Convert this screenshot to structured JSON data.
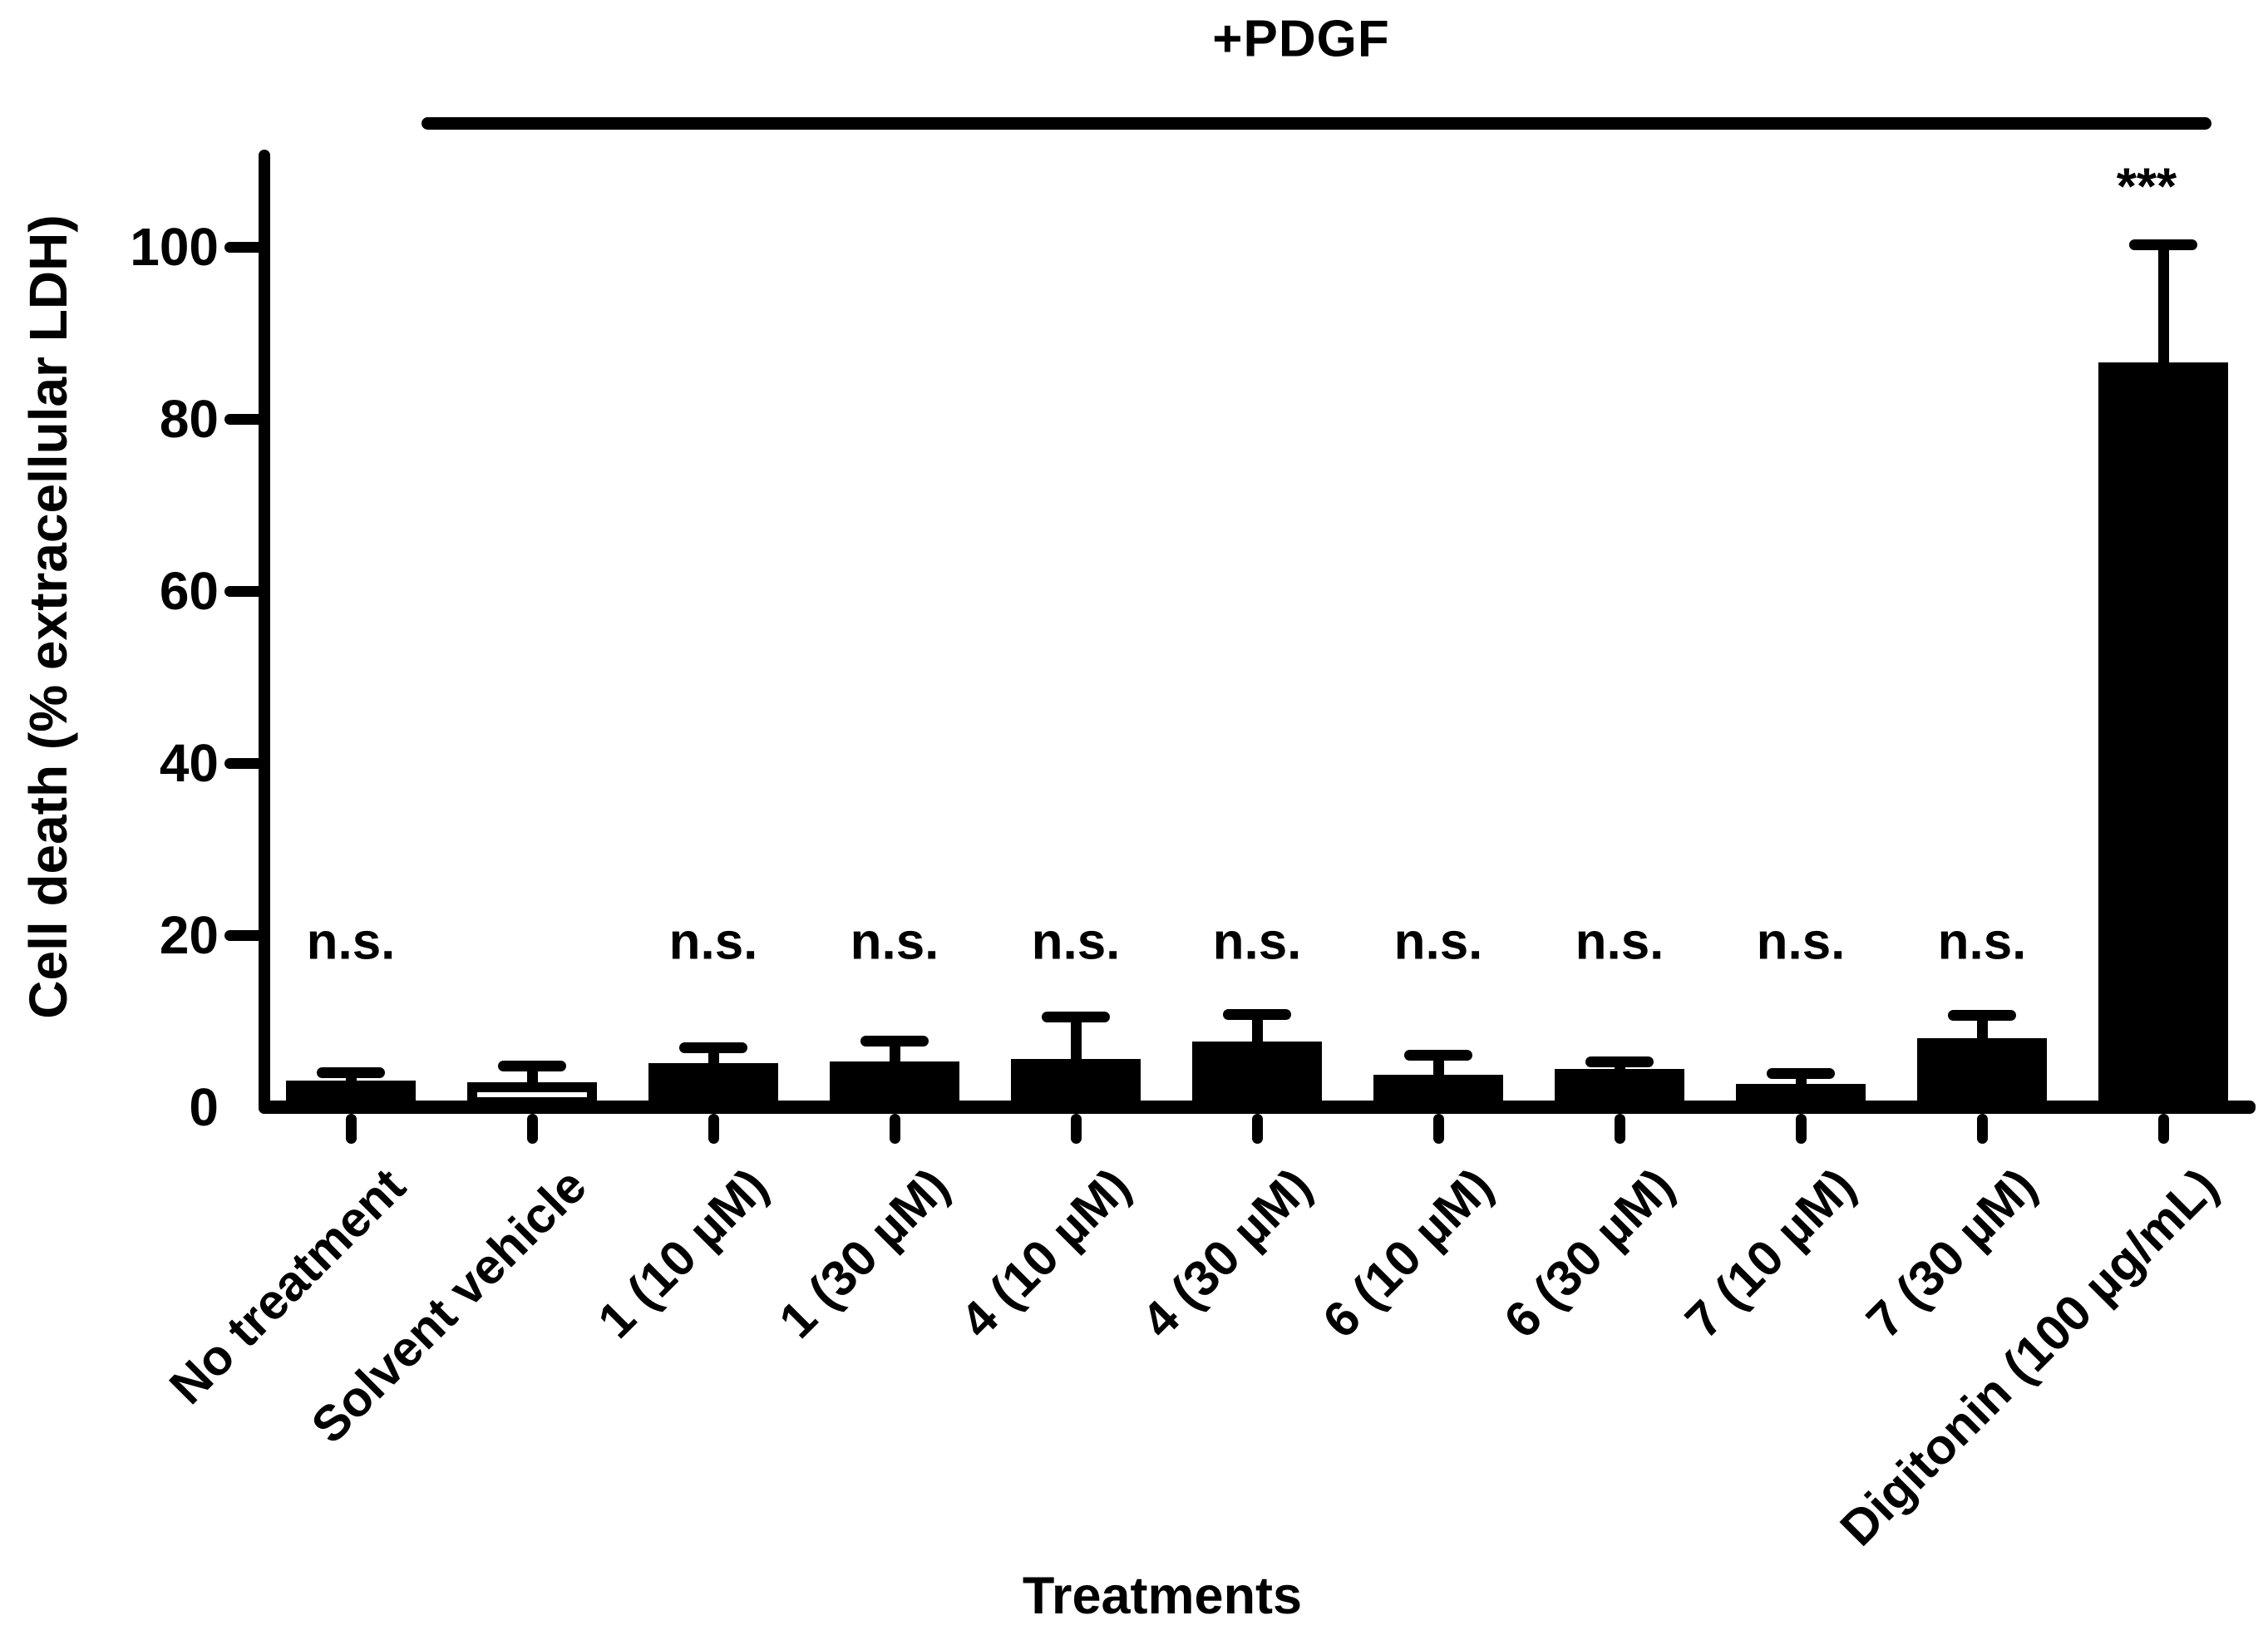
{
  "title": "+PDGF",
  "chart_data": {
    "type": "bar",
    "title": "+PDGF",
    "xlabel": "Treatments",
    "ylabel": "Cell death (% extracellular LDH)",
    "ylim": [
      0,
      110
    ],
    "yticks": [
      0,
      20,
      40,
      60,
      80,
      100
    ],
    "grid": false,
    "legend": null,
    "categories": [
      "No treatment",
      "Solvent vehicle",
      "1 (10 µM)",
      "1 (30 µM)",
      "4 (10 µM)",
      "4 (30 µM)",
      "6 (10 µM)",
      "6 (30 µM)",
      "7 (10 µM)",
      "7 (30 µM)",
      "Digitonin (100 µg/mL)"
    ],
    "series": [
      {
        "name": "Cell death (% extracellular LDH)",
        "values": [
          3.1,
          2.9,
          5.1,
          5.3,
          5.6,
          7.6,
          3.8,
          4.4,
          2.7,
          8.0,
          86.6
        ],
        "errors_upper": [
          0.9,
          1.8,
          1.8,
          2.3,
          4.8,
          3.1,
          2.2,
          0.8,
          1.2,
          2.6,
          13.6
        ]
      }
    ],
    "bar_fills": [
      "#000000",
      "#ffffff",
      "#000000",
      "#000000",
      "#000000",
      "#000000",
      "#000000",
      "#000000",
      "#000000",
      "#000000",
      "#000000"
    ],
    "bar_edge_color": "#000000",
    "annotations": [
      "n.s.",
      null,
      "n.s.",
      "n.s.",
      "n.s.",
      "n.s.",
      "n.s.",
      "n.s.",
      "n.s.",
      "n.s.",
      "***"
    ],
    "top_bracket": {
      "label": "+PDGF",
      "span_categories": [
        "Solvent vehicle",
        "Digitonin (100 µg/mL)"
      ]
    }
  }
}
